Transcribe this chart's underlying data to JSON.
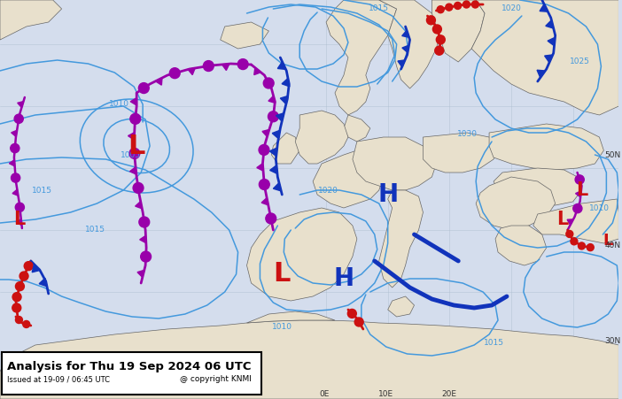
{
  "title_line1": "Analysis for Thu 19 Sep 2024 06 UTC",
  "title_line2": "Issued at 19-09 / 06:45 UTC",
  "copyright": "@ copyright KNMI",
  "bg_color": "#d4dded",
  "land_color": "#e8e0cc",
  "sea_color": "#d4dded",
  "border_color": "#666666",
  "isobar_color": "#4499dd",
  "figsize": [
    7.02,
    4.51
  ],
  "dpi": 100,
  "box_color": "white",
  "box_edge": "black"
}
